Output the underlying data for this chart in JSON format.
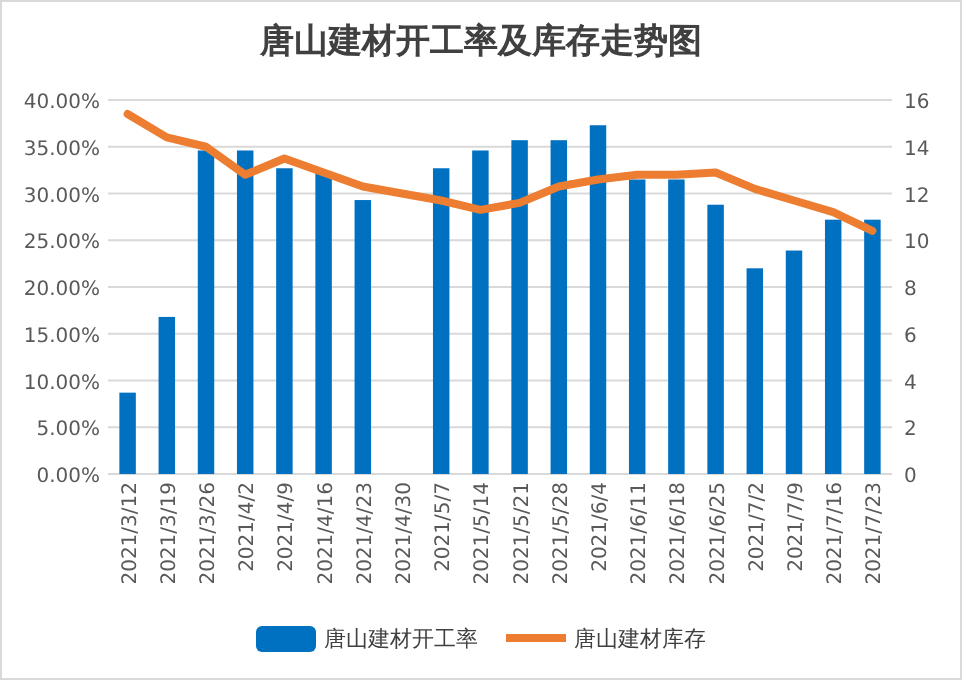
{
  "chart_data": {
    "type": "bar",
    "title": "唐山建材开工率及库存走势图",
    "categories": [
      "2021/3/12",
      "2021/3/19",
      "2021/3/26",
      "2021/4/2",
      "2021/4/9",
      "2021/4/16",
      "2021/4/23",
      "2021/4/30",
      "2021/5/7",
      "2021/5/14",
      "2021/5/21",
      "2021/5/28",
      "2021/6/4",
      "2021/6/11",
      "2021/6/18",
      "2021/6/25",
      "2021/7/2",
      "2021/7/9",
      "2021/7/16",
      "2021/7/23"
    ],
    "series": [
      {
        "name": "唐山建材开工率",
        "color": "#0070c0",
        "values": [
          8.7,
          16.8,
          34.6,
          34.6,
          32.7,
          32.3,
          29.3,
          null,
          32.7,
          34.6,
          35.7,
          35.7,
          37.3,
          31.5,
          31.5,
          28.8,
          22.0,
          23.9,
          27.2,
          27.2
        ]
      },
      {
        "name": "唐山建材库存",
        "type": "line",
        "axis": "y2",
        "color": "#ed7d31",
        "values": [
          15.4,
          14.4,
          14.0,
          12.8,
          13.5,
          12.9,
          12.3,
          12.0,
          11.7,
          11.3,
          11.6,
          12.3,
          12.6,
          12.8,
          12.8,
          12.9,
          12.2,
          11.7,
          11.2,
          10.4
        ]
      }
    ],
    "ylim": [
      0,
      40
    ],
    "yticks": [
      {
        "value": 0,
        "label": "0.00%"
      },
      {
        "value": 5,
        "label": "5.00%"
      },
      {
        "value": 10,
        "label": "10.00%"
      },
      {
        "value": 15,
        "label": "15.00%"
      },
      {
        "value": 20,
        "label": "20.00%"
      },
      {
        "value": 25,
        "label": "25.00%"
      },
      {
        "value": 30,
        "label": "30.00%"
      },
      {
        "value": 35,
        "label": "35.00%"
      },
      {
        "value": 40,
        "label": "40.00%"
      }
    ],
    "y2lim": [
      0,
      16
    ],
    "y2ticks": [
      0,
      2,
      4,
      6,
      8,
      10,
      12,
      14,
      16
    ],
    "grid": "y",
    "legend": "bottom"
  }
}
